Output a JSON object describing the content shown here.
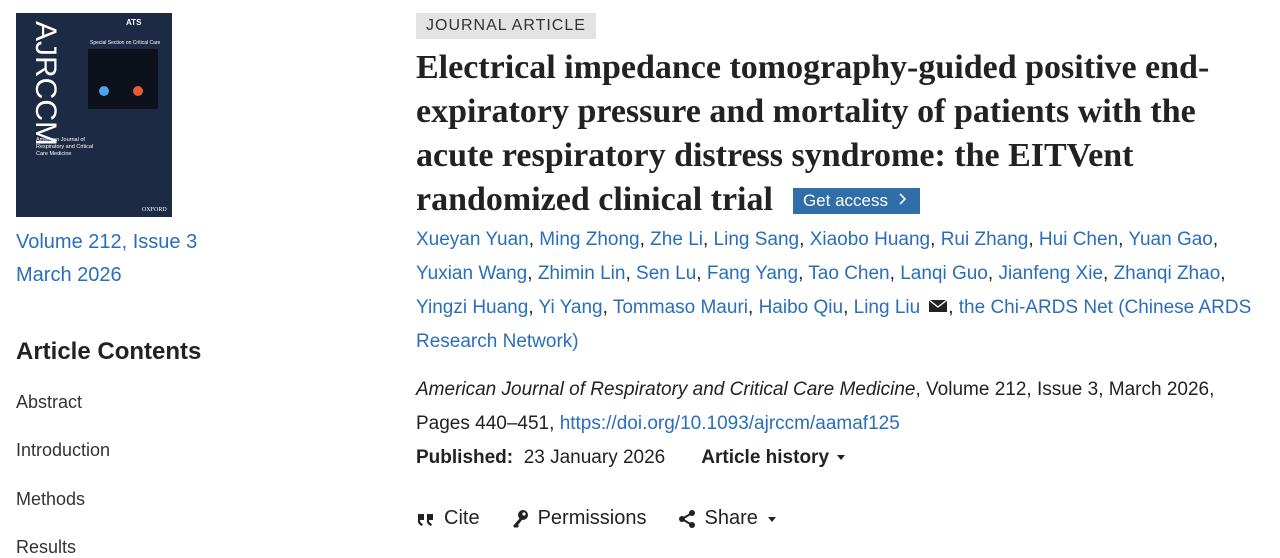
{
  "cover": {
    "journal_abbr": "AJRCCM",
    "society": "ATS",
    "section": "Special Section on Critical Care",
    "journal_name": "American Journal of Respiratory and Critical Care Medicine",
    "publisher": "OXFORD"
  },
  "issue": {
    "volume": "Volume 212, Issue 3",
    "date": "March 2026"
  },
  "contents": {
    "heading": "Article Contents",
    "items": [
      "Abstract",
      "Introduction",
      "Methods",
      "Results"
    ]
  },
  "article": {
    "type": "JOURNAL ARTICLE",
    "title": "Electrical impedance tomography-guided positive end-expiratory pressure and mortality of patients with the acute respiratory distress syndrome: the EITVent randomized clinical trial",
    "access_button": "Get access",
    "authors": [
      "Xueyan Yuan",
      "Ming Zhong",
      "Zhe Li",
      "Ling Sang",
      "Xiaobo Huang",
      "Rui Zhang",
      "Hui Chen",
      "Yuan Gao",
      "Yuxian Wang",
      "Zhimin Lin",
      "Sen Lu",
      "Fang Yang",
      "Tao Chen",
      "Lanqi Guo",
      "Jianfeng Xie",
      "Zhanqi Zhao",
      "Yingzi Huang",
      "Yi Yang",
      "Tommaso Mauri",
      "Haibo Qiu",
      "Ling Liu",
      "the Chi-ARDS Net (Chinese ARDS Research Network)"
    ],
    "citation": {
      "journal": "American Journal of Respiratory and Critical Care Medicine",
      "details": ", Volume 212, Issue 3, March 2026, Pages 440–451, ",
      "doi": "https://doi.org/10.1093/ajrccm/aamaf125"
    },
    "published_label": "Published:",
    "published_date": "23 January 2026",
    "history": "Article history"
  },
  "actions": [
    "Cite",
    "Permissions",
    "Share"
  ]
}
